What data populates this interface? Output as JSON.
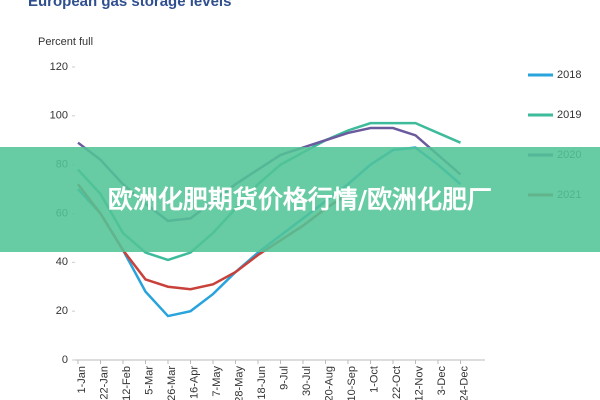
{
  "chart_data": {
    "type": "line",
    "title": "European gas storage levels",
    "y_label": "Percent full",
    "categories": [
      "1-Jan",
      "22-Jan",
      "12-Feb",
      "5-Mar",
      "26-Mar",
      "16-Apr",
      "7-May",
      "28-May",
      "18-Jun",
      "9-Jul",
      "30-Jul",
      "20-Aug",
      "10-Sep",
      "1-Oct",
      "22-Oct",
      "12-Nov",
      "3-Dec",
      "24-Dec"
    ],
    "series": [
      {
        "name": "2018",
        "color": "#29a3dc",
        "values": [
          70,
          60,
          45,
          28,
          18,
          20,
          27,
          36,
          44,
          51,
          58,
          65,
          72,
          80,
          86,
          87,
          80,
          72
        ]
      },
      {
        "name": "2019",
        "color": "#3dbb9b",
        "values": [
          78,
          68,
          52,
          44,
          41,
          44,
          52,
          62,
          72,
          80,
          85,
          90,
          94,
          97,
          97,
          97,
          93,
          89
        ]
      },
      {
        "name": "2020",
        "color": "#6b5b9e",
        "values": [
          89,
          82,
          72,
          64,
          57,
          58,
          65,
          72,
          78,
          84,
          87,
          90,
          93,
          95,
          95,
          92,
          84,
          76
        ]
      },
      {
        "name": "2021",
        "color": "#c8413a",
        "values": [
          72,
          60,
          45,
          33,
          30,
          29,
          31,
          36,
          43,
          49,
          55,
          62,
          68,
          null,
          null,
          null,
          null,
          null
        ]
      }
    ],
    "ylim": [
      0,
      120
    ],
    "yticks": [
      0,
      20,
      40,
      60,
      80,
      100,
      120
    ],
    "grid": false,
    "legend": "right",
    "overlay_title": "欧洲化肥期货价格行情/欧洲化肥厂"
  }
}
